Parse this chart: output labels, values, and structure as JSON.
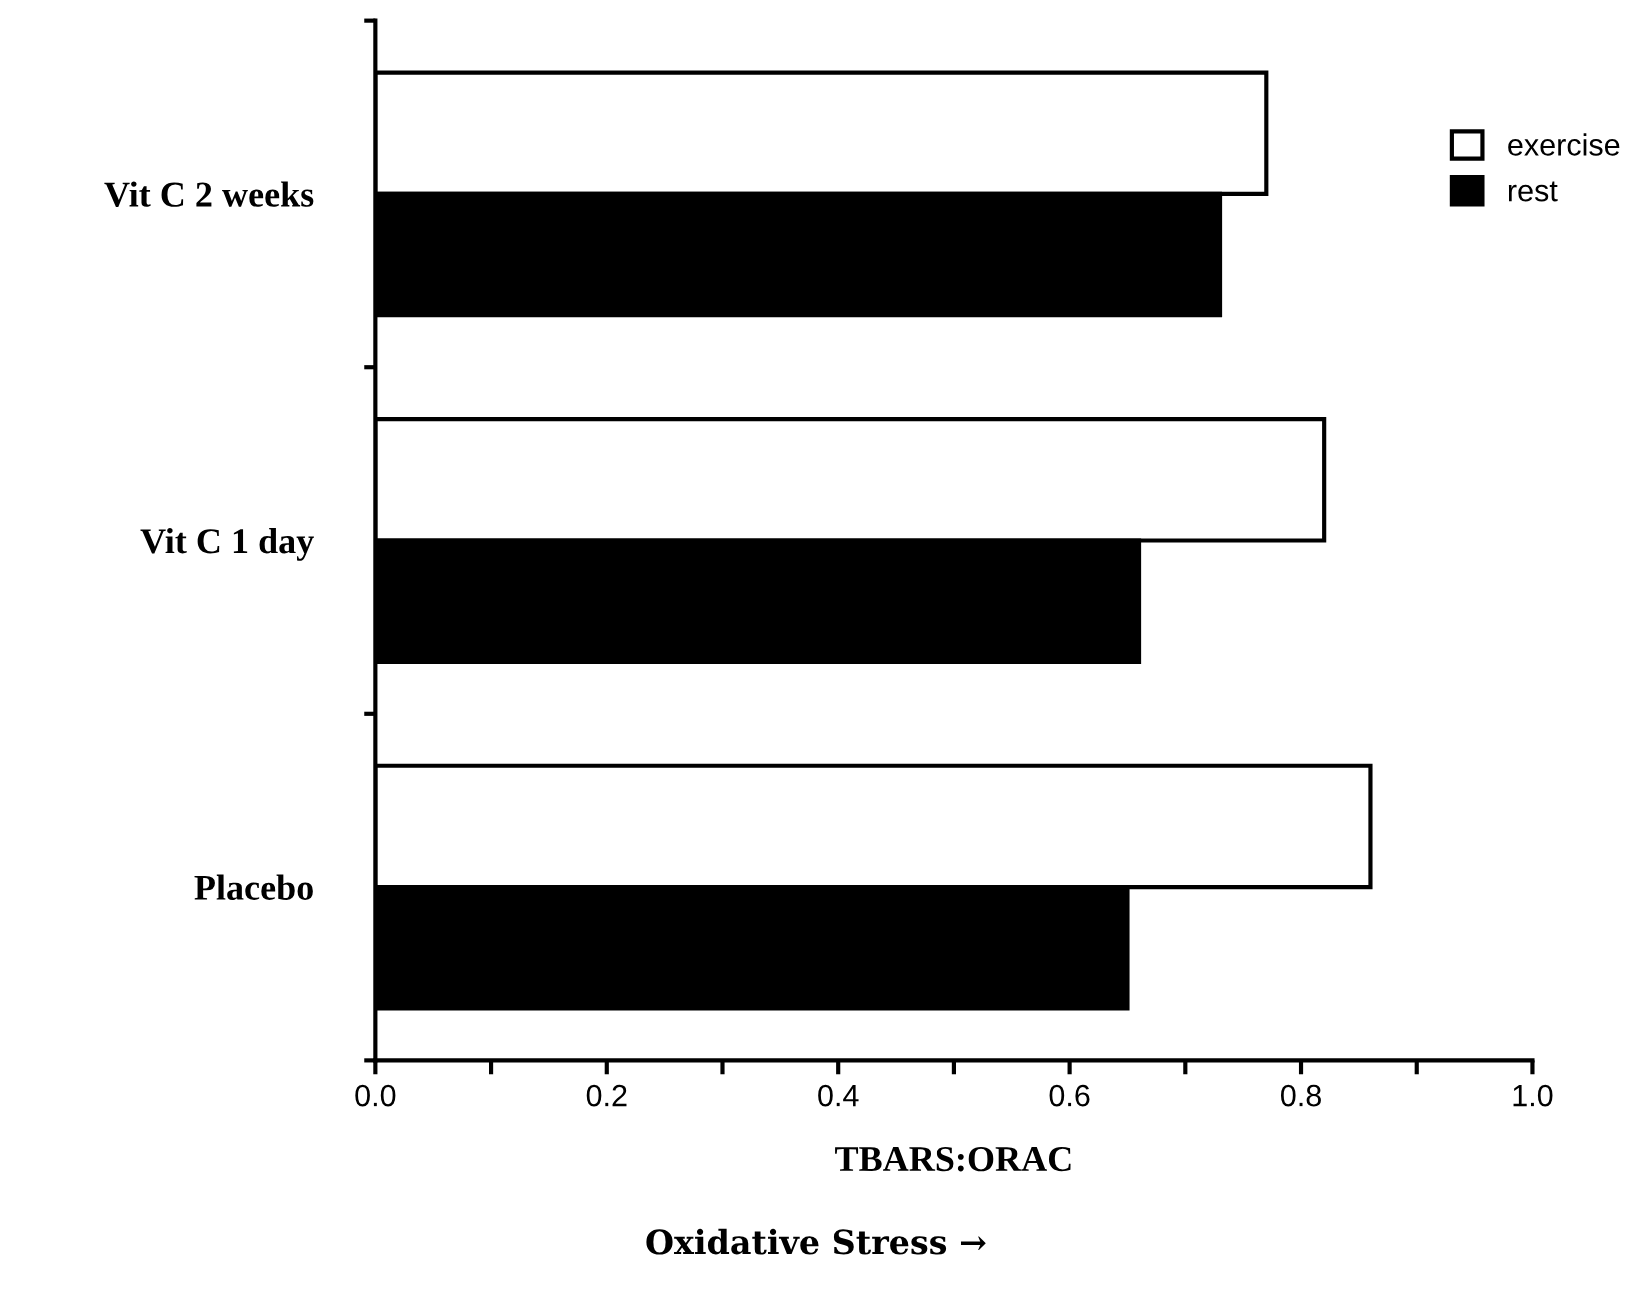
{
  "chart_data": {
    "type": "bar",
    "orientation": "horizontal",
    "categories": [
      "Vit C 2 weeks",
      "Vit C 1 day",
      "Placebo"
    ],
    "series": [
      {
        "name": "exercise",
        "color": "#ffffff",
        "values": [
          0.77,
          0.82,
          0.86
        ]
      },
      {
        "name": "rest",
        "color": "#000000",
        "values": [
          0.73,
          0.66,
          0.65
        ]
      }
    ],
    "xlim": [
      0,
      1.0
    ],
    "xticks": [
      {
        "value": 0,
        "label": "0.0"
      },
      {
        "value": 0.1,
        "label": null
      },
      {
        "value": 0.2,
        "label": "0.2"
      },
      {
        "value": 0.3,
        "label": null
      },
      {
        "value": 0.4,
        "label": "0.4"
      },
      {
        "value": 0.5,
        "label": null
      },
      {
        "value": 0.6,
        "label": "0.6"
      },
      {
        "value": 0.7,
        "label": null
      },
      {
        "value": 0.8,
        "label": "0.8"
      },
      {
        "value": 0.9,
        "label": null
      },
      {
        "value": 1.0,
        "label": "1.0"
      }
    ],
    "xlabel": "TBARS:ORAC",
    "annotations": [
      "Oxidative Stress →"
    ],
    "legend": "top right",
    "grid": false
  }
}
